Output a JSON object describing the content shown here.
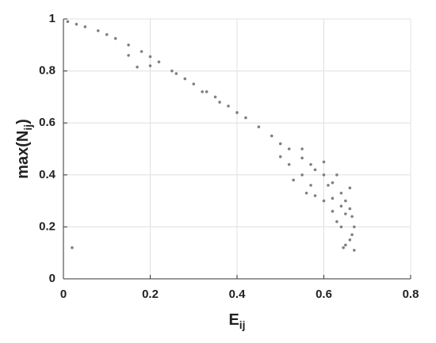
{
  "chart_data": {
    "type": "scatter",
    "xlabel": [
      "E",
      "ij"
    ],
    "ylabel": [
      "max(N",
      "ij",
      ")"
    ],
    "x": [
      0.01,
      0.03,
      0.05,
      0.08,
      0.1,
      0.12,
      0.15,
      0.18,
      0.2,
      0.22,
      0.25,
      0.28,
      0.3,
      0.33,
      0.35,
      0.38,
      0.4,
      0.42,
      0.45,
      0.48,
      0.5,
      0.52,
      0.55,
      0.57,
      0.6,
      0.62,
      0.64,
      0.65,
      0.66,
      0.665,
      0.67,
      0.665,
      0.66,
      0.65,
      0.645,
      0.15,
      0.2,
      0.26,
      0.32,
      0.36,
      0.5,
      0.52,
      0.55,
      0.57,
      0.58,
      0.6,
      0.62,
      0.63,
      0.64,
      0.55,
      0.6,
      0.63,
      0.66,
      0.58,
      0.61,
      0.64,
      0.67,
      0.02,
      0.17,
      0.53,
      0.56,
      0.62,
      0.65
    ],
    "y": [
      0.99,
      0.98,
      0.97,
      0.955,
      0.94,
      0.925,
      0.9,
      0.875,
      0.855,
      0.835,
      0.8,
      0.77,
      0.75,
      0.72,
      0.7,
      0.665,
      0.64,
      0.62,
      0.585,
      0.55,
      0.52,
      0.5,
      0.465,
      0.44,
      0.4,
      0.37,
      0.33,
      0.3,
      0.27,
      0.24,
      0.2,
      0.17,
      0.15,
      0.13,
      0.12,
      0.86,
      0.82,
      0.79,
      0.72,
      0.68,
      0.47,
      0.44,
      0.4,
      0.36,
      0.32,
      0.3,
      0.26,
      0.22,
      0.2,
      0.5,
      0.45,
      0.4,
      0.35,
      0.42,
      0.36,
      0.28,
      0.11,
      0.12,
      0.815,
      0.38,
      0.33,
      0.31,
      0.25
    ],
    "color": "#808080",
    "xlim": [
      0,
      0.8
    ],
    "xticks": [
      0,
      0.2,
      0.4,
      0.6,
      0.8
    ],
    "ylim": [
      0,
      1
    ],
    "yticks": [
      0,
      0.2,
      0.4,
      0.6,
      0.8,
      1
    ],
    "grid": true
  }
}
